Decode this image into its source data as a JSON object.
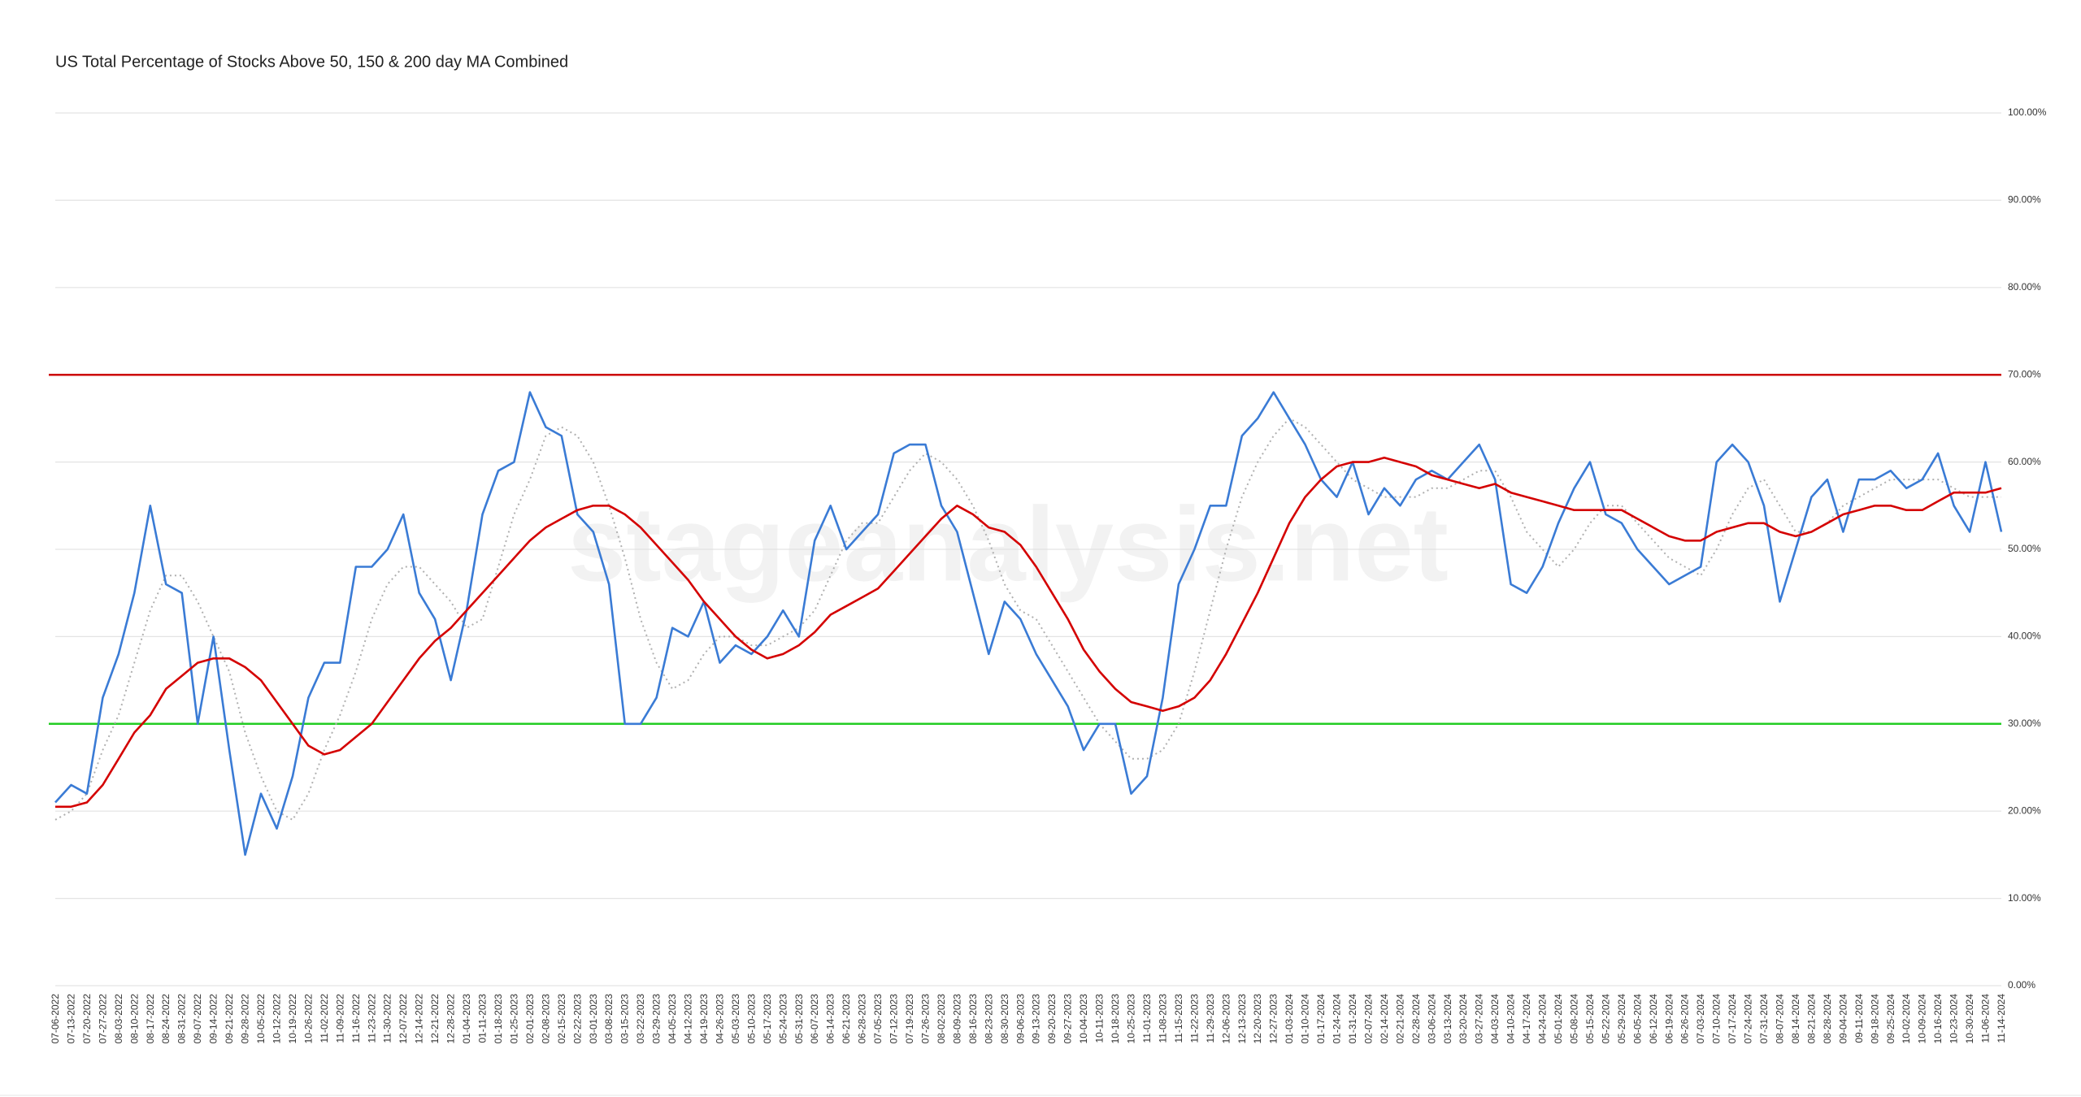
{
  "chart_data": {
    "type": "line",
    "title": "US Total Percentage of Stocks Above 50, 150 & 200 day MA Combined",
    "watermark": "stageanalysis.net",
    "categories": [
      "07-06-2022",
      "07-13-2022",
      "07-20-2022",
      "07-27-2022",
      "08-03-2022",
      "08-10-2022",
      "08-17-2022",
      "08-24-2022",
      "08-31-2022",
      "09-07-2022",
      "09-14-2022",
      "09-21-2022",
      "09-28-2022",
      "10-05-2022",
      "10-12-2022",
      "10-19-2022",
      "10-26-2022",
      "11-02-2022",
      "11-09-2022",
      "11-16-2022",
      "11-23-2022",
      "11-30-2022",
      "12-07-2022",
      "12-14-2022",
      "12-21-2022",
      "12-28-2022",
      "01-04-2023",
      "01-11-2023",
      "01-18-2023",
      "01-25-2023",
      "02-01-2023",
      "02-08-2023",
      "02-15-2023",
      "02-22-2023",
      "03-01-2023",
      "03-08-2023",
      "03-15-2023",
      "03-22-2023",
      "03-29-2023",
      "04-05-2023",
      "04-12-2023",
      "04-19-2023",
      "04-26-2023",
      "05-03-2023",
      "05-10-2023",
      "05-17-2023",
      "05-24-2023",
      "05-31-2023",
      "06-07-2023",
      "06-14-2023",
      "06-21-2023",
      "06-28-2023",
      "07-05-2023",
      "07-12-2023",
      "07-19-2023",
      "07-26-2023",
      "08-02-2023",
      "08-09-2023",
      "08-16-2023",
      "08-23-2023",
      "08-30-2023",
      "09-06-2023",
      "09-13-2023",
      "09-20-2023",
      "09-27-2023",
      "10-04-2023",
      "10-11-2023",
      "10-18-2023",
      "10-25-2023",
      "11-01-2023",
      "11-08-2023",
      "11-15-2023",
      "11-22-2023",
      "11-29-2023",
      "12-06-2023",
      "12-13-2023",
      "12-20-2023",
      "12-27-2023",
      "01-03-2024",
      "01-10-2024",
      "01-17-2024",
      "01-24-2024",
      "01-31-2024",
      "02-07-2024",
      "02-14-2024",
      "02-21-2024",
      "02-28-2024",
      "03-06-2024",
      "03-13-2024",
      "03-20-2024",
      "03-27-2024",
      "04-03-2024",
      "04-10-2024",
      "04-17-2024",
      "04-24-2024",
      "05-01-2024",
      "05-08-2024",
      "05-15-2024",
      "05-22-2024",
      "05-29-2024",
      "06-05-2024",
      "06-12-2024",
      "06-19-2024",
      "06-26-2024",
      "07-03-2024",
      "07-10-2024",
      "07-17-2024",
      "07-24-2024",
      "07-31-2024",
      "08-07-2024",
      "08-14-2024",
      "08-21-2024",
      "08-28-2024",
      "09-04-2024",
      "09-11-2024",
      "09-18-2024",
      "09-25-2024",
      "10-02-2024",
      "10-09-2024",
      "10-16-2024",
      "10-23-2024",
      "10-30-2024",
      "11-06-2024",
      "11-14-2024"
    ],
    "series": [
      {
        "color": "#b0b0b0",
        "dash": true,
        "values": [
          19,
          20,
          22,
          27,
          31,
          37,
          43,
          47,
          47,
          44,
          40,
          36,
          29,
          24,
          20,
          19,
          22,
          27,
          31,
          36,
          42,
          46,
          48,
          48,
          46,
          44,
          41,
          42,
          48,
          54,
          58,
          63,
          64,
          63,
          60,
          55,
          49,
          42,
          37,
          34,
          35,
          38,
          40,
          40,
          39,
          39,
          40,
          41,
          43,
          47,
          51,
          53,
          53,
          56,
          59,
          61,
          60,
          58,
          55,
          51,
          46,
          43,
          42,
          39,
          36,
          33,
          30,
          28,
          26,
          26,
          27,
          30,
          36,
          43,
          50,
          56,
          60,
          63,
          65,
          64,
          62,
          60,
          58,
          57,
          56,
          56,
          56,
          57,
          57,
          58,
          59,
          59,
          56,
          52,
          50,
          48,
          50,
          53,
          55,
          55,
          53,
          51,
          49,
          48,
          47,
          50,
          54,
          57,
          58,
          55,
          52,
          52,
          53,
          55,
          56,
          57,
          58,
          58,
          58,
          58,
          57,
          56,
          56,
          56
        ]
      },
      {
        "color": "#3a7bd5",
        "values": [
          21,
          23,
          22,
          33,
          38,
          45,
          55,
          46,
          45,
          30,
          40,
          27,
          15,
          22,
          18,
          24,
          33,
          37,
          37,
          48,
          48,
          50,
          54,
          45,
          42,
          35,
          43,
          54,
          59,
          60,
          68,
          64,
          63,
          54,
          52,
          46,
          30,
          30,
          33,
          41,
          40,
          44,
          37,
          39,
          38,
          40,
          43,
          40,
          51,
          55,
          50,
          52,
          54,
          61,
          62,
          62,
          55,
          52,
          45,
          38,
          44,
          42,
          38,
          35,
          32,
          27,
          30,
          30,
          22,
          24,
          33,
          46,
          50,
          55,
          55,
          63,
          65,
          68,
          65,
          62,
          58,
          56,
          60,
          54,
          57,
          55,
          58,
          59,
          58,
          60,
          62,
          58,
          46,
          45,
          48,
          53,
          57,
          60,
          54,
          53,
          50,
          48,
          46,
          47,
          48,
          60,
          62,
          60,
          55,
          44,
          50,
          56,
          58,
          52,
          58,
          58,
          59,
          57,
          58,
          61,
          55,
          52,
          60,
          52
        ]
      },
      {
        "color": "#d40000",
        "values": [
          20.5,
          20.5,
          21,
          23,
          26,
          29,
          31,
          34,
          35.5,
          37,
          37.5,
          37.5,
          36.5,
          35,
          32.5,
          30,
          27.5,
          26.5,
          27,
          28.5,
          30,
          32.5,
          35,
          37.5,
          39.5,
          41,
          43,
          45,
          47,
          49,
          51,
          52.5,
          53.5,
          54.5,
          55,
          55,
          54,
          52.5,
          50.5,
          48.5,
          46.5,
          44,
          42,
          40,
          38.5,
          37.5,
          38,
          39,
          40.5,
          42.5,
          43.5,
          44.5,
          45.5,
          47.5,
          49.5,
          51.5,
          53.5,
          55,
          54,
          52.5,
          52,
          50.5,
          48,
          45,
          42,
          38.5,
          36,
          34,
          32.5,
          32,
          31.5,
          32,
          33,
          35,
          38,
          41.5,
          45,
          49,
          53,
          56,
          58,
          59.5,
          60,
          60,
          60.5,
          60,
          59.5,
          58.5,
          58,
          57.5,
          57,
          57.5,
          56.5,
          56,
          55.5,
          55,
          54.5,
          54.5,
          54.5,
          54.5,
          53.5,
          52.5,
          51.5,
          51,
          51,
          52,
          52.5,
          53,
          53,
          52,
          51.5,
          52,
          53,
          54,
          54.5,
          55,
          55,
          54.5,
          54.5,
          55.5,
          56.5,
          56.5,
          56.5,
          57
        ]
      }
    ],
    "reference_lines": [
      {
        "value": 70,
        "color": "#cc0000"
      },
      {
        "value": 30,
        "color": "#22cc22"
      }
    ],
    "ylim": [
      0,
      100
    ],
    "yticks": [
      {
        "value": 0,
        "label": "0.00%"
      },
      {
        "value": 10,
        "label": "10.00%"
      },
      {
        "value": 20,
        "label": "20.00%"
      },
      {
        "value": 30,
        "label": "30.00%"
      },
      {
        "value": 40,
        "label": "40.00%"
      },
      {
        "value": 50,
        "label": "50.00%"
      },
      {
        "value": 60,
        "label": "60.00%"
      },
      {
        "value": 70,
        "label": "70.00%"
      },
      {
        "value": 80,
        "label": "80.00%"
      },
      {
        "value": 90,
        "label": "90.00%"
      },
      {
        "value": 100,
        "label": "100.00%"
      }
    ],
    "grid": true
  }
}
